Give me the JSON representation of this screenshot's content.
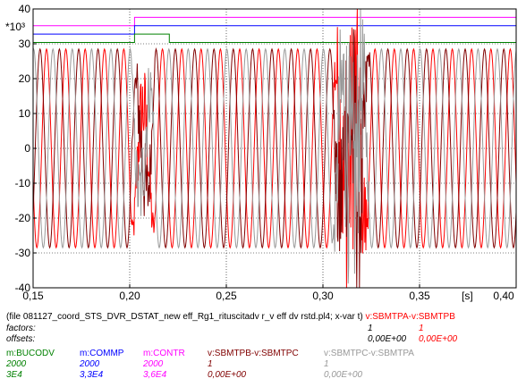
{
  "chart_data": {
    "type": "line",
    "y_multiplier": "*10³",
    "xlim": [
      0.15,
      0.4
    ],
    "ylim": [
      -40,
      40
    ],
    "x_ticks": [
      "0,15",
      "0,20",
      "0,25",
      "0,30",
      "0,35",
      "0,40"
    ],
    "x_unit": "[s]",
    "y_ticks": [
      "40",
      "30",
      "20",
      "10",
      "0",
      "-10",
      "-20",
      "-30",
      "-40"
    ],
    "grid": true,
    "series": [
      {
        "name": "m:CONTR",
        "color": "#ff00ff",
        "step_x": 0.2025,
        "levels": [
          35.2,
          37.6
        ]
      },
      {
        "name": "m:COMMP",
        "color": "#0000ff",
        "step_x": 0.2025,
        "levels": [
          32.8,
          35.2
        ]
      },
      {
        "name": "m:BUCODV",
        "color": "#008000",
        "pulse": [
          0.2025,
          0.2205
        ],
        "levels": [
          30.4,
          32.8
        ]
      },
      {
        "name": "v:SBMTPA-v:SBMTPB",
        "color": "#ff0000",
        "amplitude": 28.5,
        "frequency_hz": 100,
        "phase_deg": 200
      },
      {
        "name": "v:SBMTPB-v:SBMTPC",
        "color": "#800000",
        "amplitude": 28.5,
        "frequency_hz": 100,
        "phase_deg": 320
      },
      {
        "name": "v:SBMTPC-v:SBMTPA",
        "color": "#999999",
        "amplitude": 28.5,
        "frequency_hz": 100,
        "phase_deg": 80
      }
    ],
    "transients": [
      {
        "start": 0.2005,
        "end": 0.2135,
        "amplitude": 14
      },
      {
        "start": 0.3045,
        "end": 0.3245,
        "amplitude": 38
      }
    ]
  },
  "footer": {
    "file_line": "(file 081127_coord_STS_DVR_DSTAT_new eff_Rg1_rituscitadv r_v eff dv rstd.pl4; x-var t)",
    "file_var": "v:SBMTPA-v:SBMTPB",
    "factors_label": "factors:",
    "factors_v1": "1",
    "factors_v2": "1",
    "offsets_label": "offsets:",
    "offsets_v1": "0,00E+00",
    "offsets_v2": "0,00E+00",
    "legend": [
      {
        "name": "m:BUCODV",
        "factor": "2000",
        "offset": "3E4",
        "color": "#008000"
      },
      {
        "name": "m:COMMP",
        "factor": "2000",
        "offset": "3,3E4",
        "color": "#0000ff"
      },
      {
        "name": "m:CONTR",
        "factor": "2000",
        "offset": "3,6E4",
        "color": "#ff00ff"
      },
      {
        "name": "v:SBMTPB-v:SBMTPC",
        "factor": "1",
        "offset": "0,00E+00",
        "color": "#800000"
      },
      {
        "name": "v:SBMTPC-v:SBMTPA",
        "factor": "1",
        "offset": "0,00E+00",
        "color": "#999999"
      }
    ]
  }
}
